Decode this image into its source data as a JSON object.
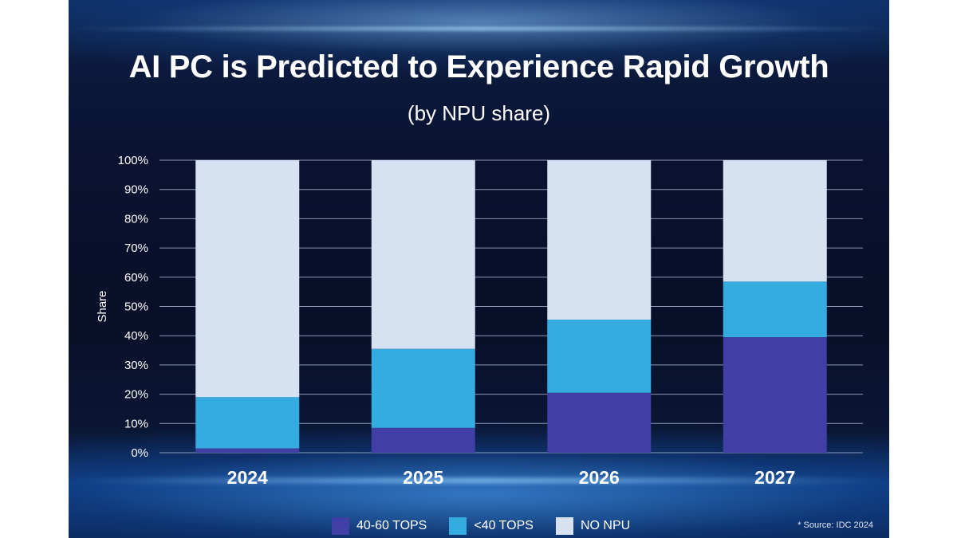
{
  "title": "AI PC is Predicted to Experience Rapid Growth",
  "subtitle": "(by NPU share)",
  "source": "* Source: IDC 2024",
  "colors": {
    "tops_40_60": "#3f3fa6",
    "tops_under_40": "#35ace0",
    "no_npu": "#d6e1f1",
    "grid": "#8a97b2",
    "text": "#ffffff"
  },
  "chart_data": {
    "type": "bar",
    "stacked": true,
    "title": "AI PC is Predicted to Experience Rapid Growth",
    "subtitle": "(by NPU share)",
    "xlabel": "",
    "ylabel": "Share",
    "ylim": [
      0,
      100
    ],
    "yticks": [
      "0%",
      "10%",
      "20%",
      "30%",
      "40%",
      "50%",
      "60%",
      "70%",
      "80%",
      "90%",
      "100%"
    ],
    "categories": [
      "2024",
      "2025",
      "2026",
      "2027"
    ],
    "series": [
      {
        "name": "40-60 TOPS",
        "color": "#3f3fa6",
        "values": [
          1.5,
          8.5,
          20.5,
          39.5
        ]
      },
      {
        "name": "<40 TOPS",
        "color": "#35ace0",
        "values": [
          17.5,
          27,
          25,
          19
        ]
      },
      {
        "name": "NO NPU",
        "color": "#d6e1f1",
        "values": [
          81,
          64.5,
          54.5,
          41.5
        ]
      }
    ],
    "legend_position": "bottom-center",
    "grid": true
  }
}
